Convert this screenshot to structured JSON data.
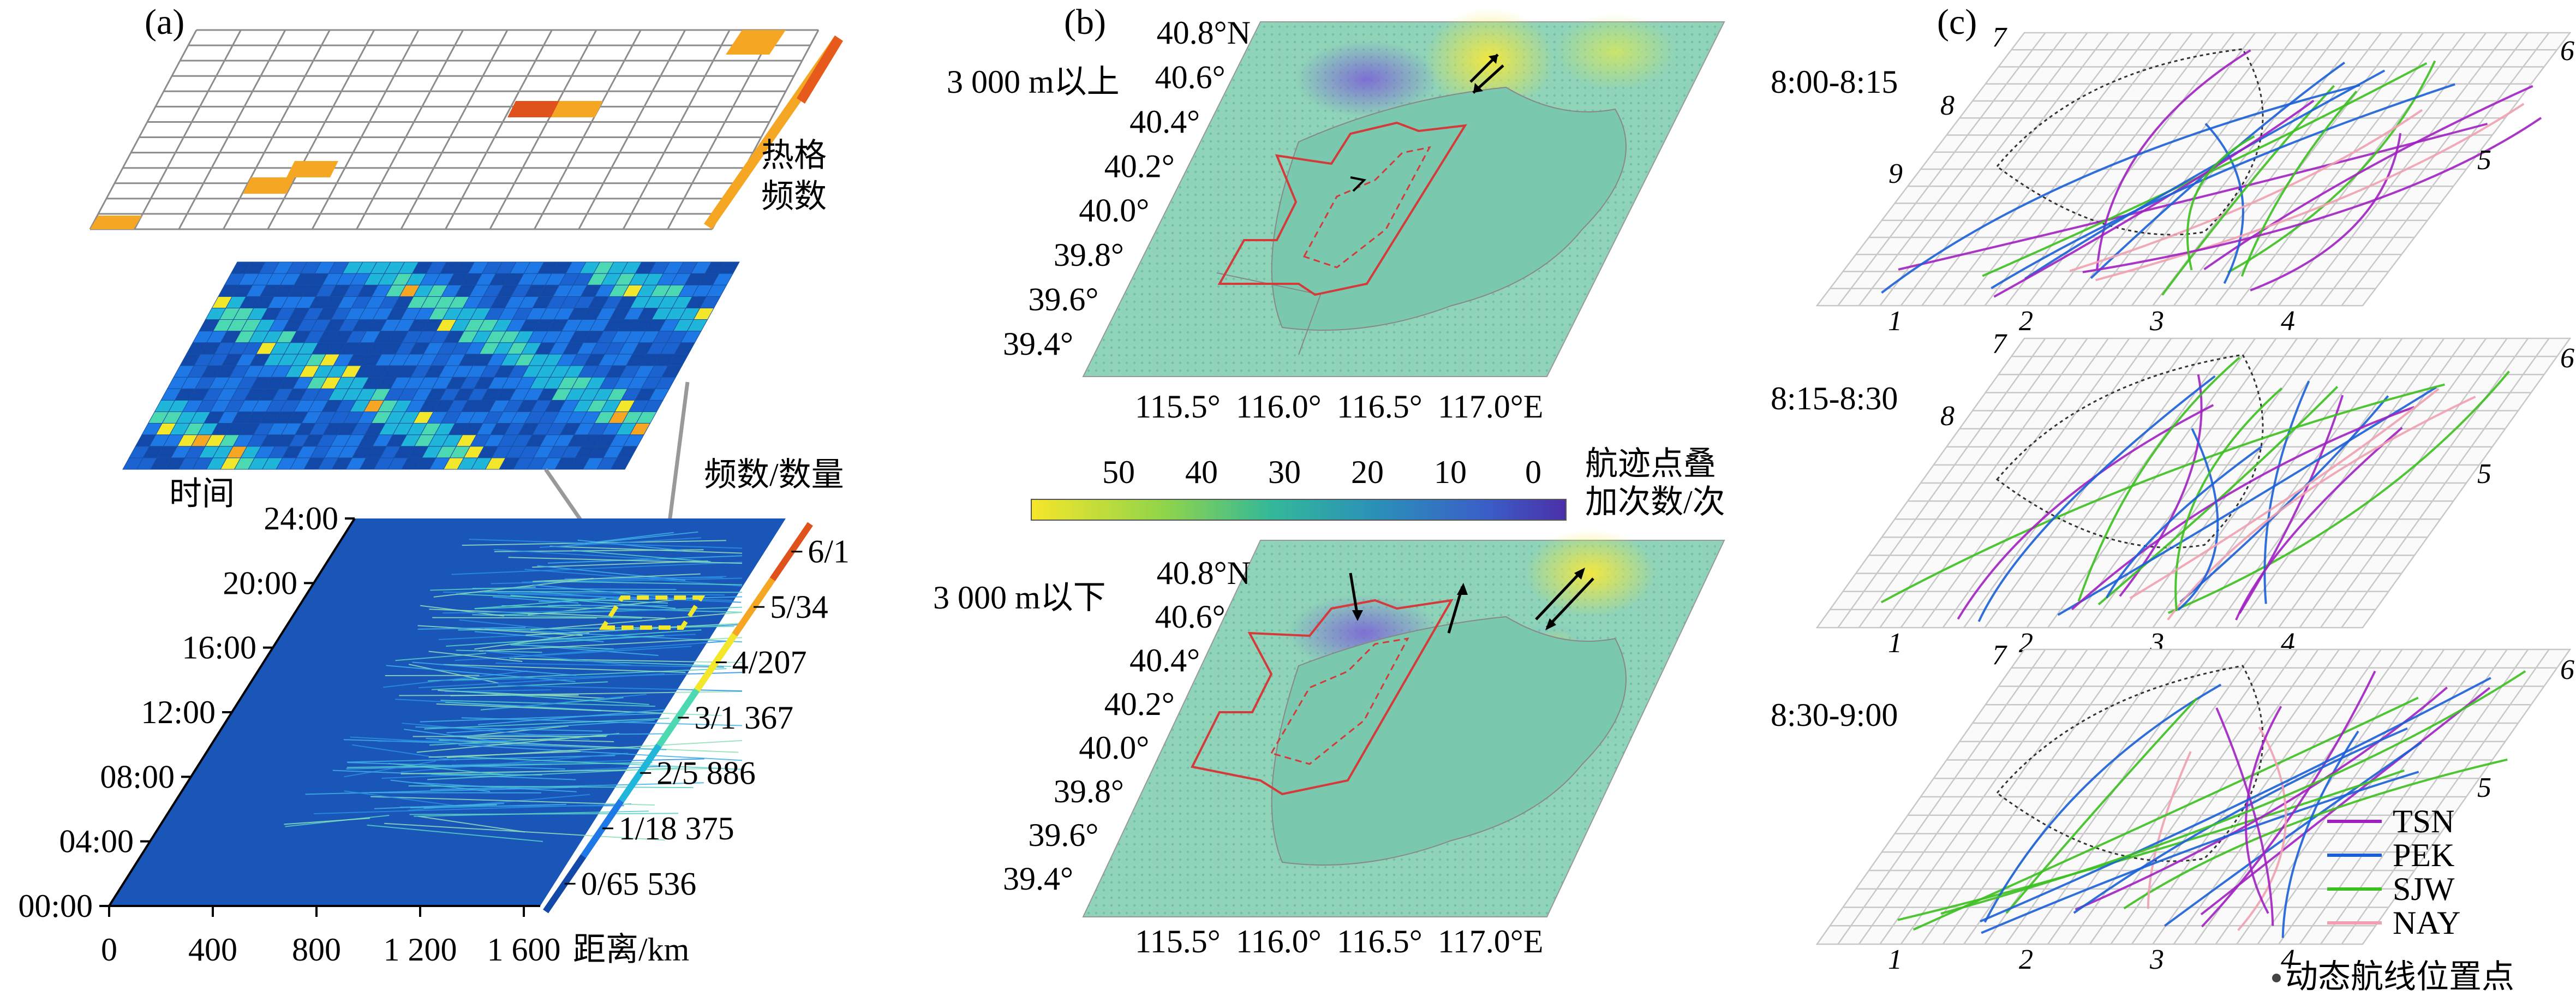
{
  "panel_a": {
    "label": "(a)",
    "legend_title": [
      "热格",
      "频数"
    ],
    "freq_qty_title": "频数/数量",
    "time_title": "时间",
    "time_ticks": [
      "00:00",
      "04:00",
      "08:00",
      "12:00",
      "16:00",
      "20:00",
      "24:00"
    ],
    "distance_ticks": [
      "0",
      "400",
      "800",
      "1 200",
      "1 600"
    ],
    "distance_label": "距离/km",
    "scale": [
      {
        "label": "0/65 536",
        "color": "#1248a8"
      },
      {
        "label": "1/18 375",
        "color": "#1e78e6"
      },
      {
        "label": "2/5 886",
        "color": "#1fb6d9"
      },
      {
        "label": "3/1 367",
        "color": "#4cd8b0"
      },
      {
        "label": "4/207",
        "color": "#f2e72a"
      },
      {
        "label": "5/34",
        "color": "#f5a623"
      },
      {
        "label": "6/1",
        "color": "#e0521b"
      }
    ]
  },
  "panel_b": {
    "label": "(b)",
    "top_title": "3 000 m以上",
    "bottom_title": "3 000 m以下",
    "lat_ticks": [
      "40.8°N",
      "40.6°",
      "40.4°",
      "40.2°",
      "40.0°",
      "39.8°",
      "39.6°",
      "39.4°"
    ],
    "lon_ticks": [
      "115.5°",
      "116.0°",
      "116.5°",
      "117.0°E"
    ],
    "colorbar_ticks": [
      "50",
      "40",
      "30",
      "20",
      "10",
      "0"
    ],
    "colorbar_label": [
      "航迹点叠",
      "加次数/次"
    ]
  },
  "panel_c": {
    "label": "(c)",
    "slices": [
      {
        "time": "8:00-8:15",
        "points": [
          "1",
          "2",
          "3",
          "4",
          "5",
          "6",
          "7",
          "8",
          "9"
        ]
      },
      {
        "time": "8:15-8:30",
        "points": [
          "1",
          "2",
          "3",
          "4",
          "5",
          "6",
          "7",
          "8"
        ]
      },
      {
        "time": "8:30-9:00",
        "points": [
          "1",
          "2",
          "3",
          "4",
          "5",
          "6",
          "7"
        ]
      }
    ],
    "legend": [
      {
        "name": "TSN",
        "color": "#a020c0"
      },
      {
        "name": "PEK",
        "color": "#1a5fd6"
      },
      {
        "name": "SJW",
        "color": "#3cbf20"
      },
      {
        "name": "NAY",
        "color": "#f0a0b0"
      }
    ],
    "dynamic_point_label": "动态航线位置点"
  }
}
